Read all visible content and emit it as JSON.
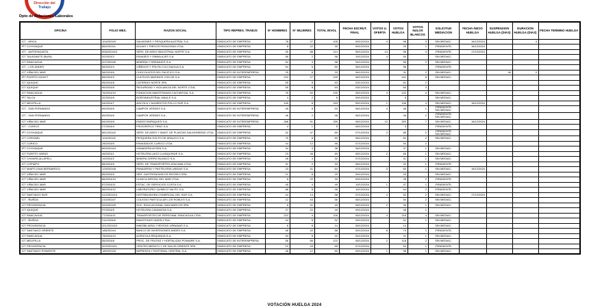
{
  "logo": {
    "line1": "Dirección del",
    "line2": "Trabajo"
  },
  "header": {
    "department": "Dpto de Relaciones Laborales"
  },
  "footer": {
    "caption": "VOTACIÓN HUELGA 2024"
  },
  "table": {
    "headers": [
      "OFICINA",
      "FOLIO MES.",
      "RAZON SOCIAL",
      "TIPO REPRES. TRABJS",
      "N° HOMBRES",
      "N° MUJERES",
      "TOTAL INVOL",
      "FECHA ESCRUT. FINAL",
      "VOTOS U. OFERTA",
      "VOTOS HUELGA",
      "VOTOS NULOS BLANCOS",
      "SOLICITUD MEDIACION",
      "FECHA INICIO HUELGA",
      "SUSPENSION HUELGA (DIAS)",
      "DURACION HUELGA (DIAS)",
      "FECHA TERMINO HUELGA"
    ],
    "rows": [
      [
        "ICT - ARICA",
        "104/2024/9",
        "SALMONES Y PESQUERA AUSTRAL S.A.",
        "SINDICATO DE EMPRESA",
        "78",
        "27",
        "105",
        "09/12/2024",
        "4",
        "98",
        "3",
        "SIN MEDIAC.",
        "16/12/2024",
        "",
        "4",
        ""
      ],
      [
        "IPT COYHAIQUE",
        "860/2024/1",
        "AGUAS Y RIEGOS PATAGONIA LTDA.",
        "SINDICATO DE EMPRESA",
        "8",
        "22",
        "30",
        "09/12/2024",
        "",
        "29",
        "1",
        "-PENDIENTE-",
        "16/12/2024",
        "",
        "",
        ""
      ],
      [
        "ICT - ANTOFAGASTA",
        "505/2024/10",
        "SERV. DE ASEO INDUSTRIAL NORTE S.A.",
        "SINDICATO DE EMPRESA",
        "26",
        "88",
        "114",
        "05/12/2024",
        "14",
        "96",
        "4",
        "-PENDIENTE-",
        "17/12/2024",
        "",
        "",
        ""
      ],
      [
        "ICT TALAGANTE (BUIN)",
        "92/2024/2",
        "ENVASES Y EMBALAJES S.A.",
        "SINDICATO DE EMPRESA",
        "56",
        "2",
        "58",
        "10/12/2024",
        "4",
        "54",
        "",
        "SIN MEDIAC.",
        "",
        "",
        "",
        ""
      ],
      [
        "ICT RANCAGUA",
        "207/2024/5",
        "MINERIA Y DRENAJES S.A.",
        "SINDICATO DE EMPRESA",
        "54",
        "4",
        "58",
        "04/12/2024",
        "",
        "56",
        "2",
        "SIN MEDIAC.",
        "",
        "",
        "",
        ""
      ],
      [
        "ICT - LOS ANDES",
        "56/2024/4",
        "VIÑEDOS Y FRUTA COLCHAGUA S.A.",
        "SINDICATO DE EMPRESA",
        "54",
        "6",
        "60",
        "06/12/2024",
        "",
        "58",
        "",
        "-PENDIENTE-",
        "",
        "",
        "",
        ""
      ],
      [
        "ICT VIÑA DEL MAR",
        "58/2024/6",
        "CHOCOLATES DEL PACIFICO S.A.",
        "SINDICATO DE INTEREMPRESA",
        "25",
        "8",
        "33",
        "06/12/2024",
        "",
        "31",
        "2",
        "SIN MEDIAC.",
        "",
        "46",
        "0",
        ""
      ],
      [
        "IPT PUERTO MONTT",
        "88/2024/3",
        "CULTIVOS MARINOS CHILOE S.A.",
        "SINDICATO DE EMPRESA",
        "222",
        "27",
        "249",
        "06/12/2024",
        "",
        "241",
        "8",
        "SIN MEDIAC.",
        "",
        "",
        "",
        ""
      ],
      [
        "ICT IQUIQUE",
        "95/2024/8",
        "CATERING NORTE SPA",
        "SINDICATO DE EMPRESA",
        "55",
        "8",
        "63",
        "03/12/2024",
        "",
        "61",
        "2",
        "",
        "",
        "",
        "",
        ""
      ],
      [
        "ICT IQUIQUE",
        "96/2024/8",
        "SEGURIDAD Y VIGILANCIA DEL NORTE LTDA.",
        "SINDICATO DE EMPRESA",
        "55",
        "8",
        "63",
        "03/12/2024",
        "",
        "60",
        "3",
        "",
        "",
        "",
        "",
        ""
      ],
      [
        "ICT RANCAGUA",
        "76/2024/10",
        "FUNDICION MAESTRANZA CACHAPOAL S.A.",
        "SINDICATO DE EMPRESA",
        "78",
        "52",
        "130",
        "05/12/2024",
        "4",
        "122",
        "4",
        "SIN MEDIAC.",
        "",
        "",
        "",
        ""
      ],
      [
        "IPT TALCA",
        "32/2024/6",
        "AGROINDUSTRIAL MAULE S.A.",
        "SINDICATO DE EMPRESA",
        "4",
        "2",
        "6",
        "09/12/2024",
        "",
        "6",
        "",
        "SIN MEDIAC.",
        "",
        "",
        "",
        ""
      ],
      [
        "ICT MELIPILLA",
        "54/2024/7",
        "AVICOLA Y ALIMENTOS POLLO SUR S.A.",
        "SINDICATO DE EMPRESA",
        "145",
        "8",
        "153",
        "05/12/2024",
        "1",
        "148",
        "4",
        "SIN MEDIAC.",
        "16/12/2024",
        "",
        "",
        ""
      ],
      [
        "ICT - SAN FERNANDO",
        "89/2024/5",
        "CAMPOS VERDES S.A.",
        "SINDICATO DE INTEREMPRESA",
        "45",
        "8",
        "53",
        "06/12/2024",
        "4",
        "48",
        "1",
        "-PENDIENTE-\nSIN MEDIAC.",
        "",
        "",
        "",
        ""
      ],
      [
        "ICT - SAN FERNANDO",
        "89/2024/6",
        "CAMPOS VERDES S.A.",
        "SINDICATO DE INTEREMPRESA",
        "46",
        "2",
        "48",
        "06/12/2024",
        "",
        "46",
        "2",
        "-PENDIENTE-\nSIN MEDIAC.",
        "",
        "",
        "",
        ""
      ],
      [
        "ICT VIÑA DEL MAR",
        "84/2024/8",
        "ENDES EMPAQUES S.A.",
        "SINDICATO DE INTEREMPRESA",
        "288",
        "51",
        "339",
        "06/12/2024",
        "12",
        "320",
        "7",
        "SIN MEDIAC.",
        "16/12/2024",
        "",
        "",
        ""
      ],
      [
        "ICT - CURICO",
        "27/2024/4",
        "FRIGORIFICO TENO S.A.",
        "SINDICATO DE EMPRESA",
        "4",
        "1",
        "5",
        "05/12/2024",
        "",
        "5",
        "",
        "-PENDIENTE-",
        "",
        "",
        "",
        ""
      ],
      [
        "IPT COYHAIQUE",
        "861/2024/2",
        "SERV. DE ASEO Y MANT. DE PLANTAS SALMONERAS LTDA.",
        "SINDICATO DE EMPRESA",
        "42",
        "47",
        "89",
        "07/12/2024",
        "2",
        "85",
        "2",
        "-PENDIENTE-\nSIN MEDIAC.",
        "",
        "",
        "",
        ""
      ],
      [
        "ICT CORONEL",
        "104/2024/2",
        "PESQUERA GOLFO DE ARAUCO S.A.",
        "SINDICATO DE EMPRESA",
        "75",
        "8",
        "83",
        "06/12/2024",
        "",
        "81",
        "2",
        "SIN MEDIAC.",
        "",
        "",
        "",
        ""
      ],
      [
        "ICT CURICO",
        "28/2024/5",
        "ENVASADOS CURICO LTDA.",
        "SINDICATO DE EMPRESA",
        "44",
        "12",
        "56",
        "07/12/2024",
        "",
        "54",
        "2",
        "",
        "",
        "",
        "",
        ""
      ],
      [
        "IPT COYHAIQUE",
        "863/2024/4",
        "GANADERA AYSEN S.A.",
        "SINDICATO DE EMPRESA",
        "34",
        "4",
        "38",
        "06/12/2024",
        "",
        "37",
        "1",
        "SIN MEDIAC.",
        "",
        "",
        "",
        ""
      ],
      [
        "ICT PUERTO VARAS",
        "46/2024/1",
        "HOTELERA LAGO LLANQUIHUE S.A.",
        "SINDICATO DE EMPRESA",
        "23",
        "46",
        "69",
        "05/12/2024",
        "2",
        "66",
        "1",
        "SIN MEDIAC.",
        "",
        "",
        "",
        ""
      ],
      [
        "ICT CHOAPA (ILLAPEL)",
        "19/2024/2",
        "MINERA CERRO BLANCO S.A.",
        "SINDICATO DE EMPRESA",
        "28",
        "4",
        "32",
        "07/12/2024",
        "",
        "31",
        "1",
        "SIN MEDIAC.",
        "",
        "",
        "",
        ""
      ],
      [
        "ICT COPIAPO",
        "88/2024/5",
        "SERV. DE TRANSPORTES ATACAMA LTDA.",
        "SINDICATO DE EMPRESA",
        "31",
        "2",
        "33",
        "06/12/2024",
        "",
        "32",
        "1",
        "-PENDIENTE-",
        "",
        "",
        "",
        ""
      ],
      [
        "ICT MAIPO (SAN BERNARDO)",
        "129/2024/8",
        "PANADERIA Y PASTELERIA UNIDAS S.A.",
        "SINDICATO DE EMPRESA",
        "23",
        "41",
        "64",
        "07/12/2024",
        "3",
        "60",
        "1",
        "SIN MEDIAC.",
        "16/12/2024",
        "",
        "",
        ""
      ],
      [
        "ICT VIÑA DEL MAR",
        "85/2024/9",
        "SER. GASTRONOMICOS RECREO SPA",
        "SINDICATO DE EMPRESA",
        "21",
        "8",
        "29",
        "09/12/2024",
        "",
        "29",
        "",
        "SIN MEDIAC.",
        "",
        "",
        "",
        ""
      ],
      [
        "ICT VIÑA DEL MAR",
        "86/2024/10",
        "CLINICA DENTAL DEL MAR LTDA.",
        "SINDICATO DE EMPRESA",
        "8",
        "22",
        "30",
        "09/12/2024",
        "",
        "28",
        "2",
        "-PENDIENTE-",
        "",
        "",
        "",
        ""
      ],
      [
        "ICT VIÑA DEL MAR",
        "87/2024/11",
        "ESTAC. DE SERVICIOS COSTA S.A.",
        "SINDICATO DE EMPRESA",
        "45",
        "4",
        "49",
        "10/12/2024",
        "1",
        "47",
        "1",
        "-PENDIENTE-",
        "",
        "",
        "",
        ""
      ],
      [
        "ICT VIÑA DEL MAR",
        "88/2024/12",
        "LABORATORIO QUIMICO VALPO S.A.",
        "SINDICATO DE EMPRESA",
        "88",
        "8",
        "96",
        "10/12/2024",
        "",
        "94",
        "2",
        "-PENDIENTE-",
        "",
        "",
        "",
        ""
      ],
      [
        "ICT SANTIAGO SUR",
        "412/2024/14",
        "DISTRIBUIDORA COMERCIAL DEL SUR S.A.",
        "SINDICATO DE EMPRESA",
        "44",
        "14",
        "58",
        "07/12/2024",
        "4",
        "52",
        "2",
        "SIN MEDIAC.",
        "17/12/2024",
        "",
        "",
        ""
      ],
      [
        "ICT - ÑUÑOA",
        "210/2024/7",
        "COLEGIO PARTICULAR LOS ROBLES S.A.",
        "SINDICATO DE EMPRESA",
        "12",
        "44",
        "56",
        "06/12/2024",
        "",
        "54",
        "2",
        "SIN MEDIAC.",
        "",
        "",
        "",
        ""
      ],
      [
        "ICT PROVIDENCIA",
        "320/2024/9",
        "SOC. EDUCACIONAL SAN MARCOS SPA",
        "SINDICATO DE EMPRESA",
        "8",
        "41",
        "49",
        "06/12/2024",
        "2",
        "46",
        "1",
        "SIN MEDIAC.",
        "",
        "",
        "",
        ""
      ],
      [
        "ICT IQUIQUE",
        "97/2024/9",
        "HOTELERA CAVANCHA S.A.",
        "SINDICATO DE EMPRESA",
        "27",
        "22",
        "49",
        "09/12/2024",
        "",
        "48",
        "1",
        "",
        "",
        "",
        "",
        ""
      ],
      [
        "ICT RANCAGUA",
        "77/2024/11",
        "TRANSPORTES DE PERSONAL RANCAGUA LTDA.",
        "SINDICATO DE EMPRESA",
        "222",
        "4",
        "226",
        "05/12/2024",
        "4",
        "218",
        "4",
        "SIN MEDIAC.",
        "",
        "",
        "",
        ""
      ],
      [
        "ICT - ÑUÑOA",
        "211/2024/8",
        "RADIOTAXIS UNION LTDA.",
        "SINDICATO DE EMPRESA",
        "44",
        "8",
        "52",
        "09/12/2024",
        "",
        "51",
        "1",
        "SIN MEDIAC.",
        "",
        "",
        "",
        ""
      ],
      [
        "ICT PROVIDENCIA",
        "321/2024/10",
        "INMOBILIARIA Y RENTAS URBANAS S.A.",
        "SINDICATO DE EMPRESA",
        "6",
        "8",
        "14",
        "06/12/2024",
        "",
        "14",
        "",
        "SIN MEDIAC.",
        "",
        "",
        "",
        ""
      ],
      [
        "ICT SANTIAGO ORIENTE",
        "188/2024/4",
        "BANCO DE INVERSIONES ANDES S.A.",
        "SINDICATO DE EMPRESA",
        "46",
        "42",
        "88",
        "09/12/2024",
        "8",
        "79",
        "1",
        "-PENDIENTE-",
        "",
        "",
        "",
        ""
      ],
      [
        "ICT RANCAGUA",
        "78/2024/12",
        "AGRICOLA REQUINOA S.A.",
        "SINDICATO DE EMPRESA",
        "34",
        "8",
        "42",
        "04/12/2024",
        "",
        "41",
        "1",
        "SIN MEDIAC.",
        "",
        "",
        "",
        ""
      ],
      [
        "ICT MELIPILLA",
        "55/2024/8",
        "PROC. DE FRUTAS Y HORTALIZAS POMAIRE S.A.",
        "SINDICATO DE INTEREMPRESA",
        "56",
        "66",
        "122",
        "06/12/2024",
        "2",
        "118",
        "2",
        "SIN MEDIAC.",
        "",
        "",
        "",
        ""
      ],
      [
        "ICT PROVIDENCIA",
        "322/2024/11",
        "CENTRO MEDICO Y DE SALUD ORIENTE SPA",
        "SINDICATO DE EMPRESA",
        "12",
        "43",
        "55",
        "07/12/2024",
        "",
        "54",
        "1",
        "-PENDIENTE-",
        "",
        "",
        "",
        ""
      ],
      [
        "ICT SANTIAGO PONIENTE",
        "189/2024/5",
        "IMPRENTA Y EDITORIAL CENTRAL S.A.",
        "SINDICATO DE EMPRESA",
        "48",
        "12",
        "60",
        "09/12/2024",
        "1",
        "58",
        "1",
        "SIN MEDIAC.",
        "",
        "",
        "",
        ""
      ]
    ]
  }
}
